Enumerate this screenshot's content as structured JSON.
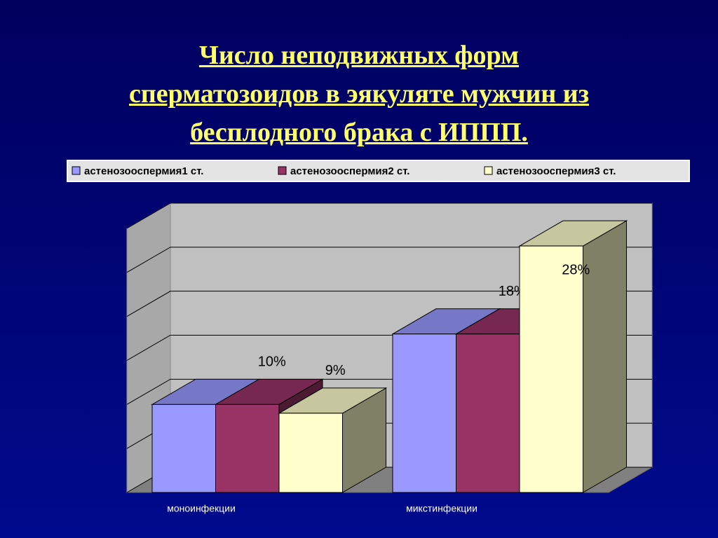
{
  "chart_data": {
    "type": "bar3d",
    "title": "Число неподвижных форм\nсперматозоидов в  эякуляте мужчин из\nбесплодного брака с ИППП.",
    "categories": [
      "моноинфекции",
      "микстинфекции"
    ],
    "series": [
      {
        "name": "астенозооспермия1 ст.",
        "color": "#9999ff",
        "values": [
          10,
          18
        ]
      },
      {
        "name": "астенозооспермия2 ст.",
        "color": "#993366",
        "values": [
          10,
          18
        ],
        "value_labels": [
          "10%",
          "18%"
        ]
      },
      {
        "name": "астенозооспермия3 ст.",
        "color": "#ffffcc",
        "values": [
          9,
          28
        ],
        "value_labels": [
          "9%",
          "28%"
        ]
      }
    ],
    "ylim": [
      0,
      30
    ],
    "yticks": [
      0,
      5,
      10,
      15,
      20,
      25,
      30
    ],
    "grid": true,
    "legend": "top"
  }
}
